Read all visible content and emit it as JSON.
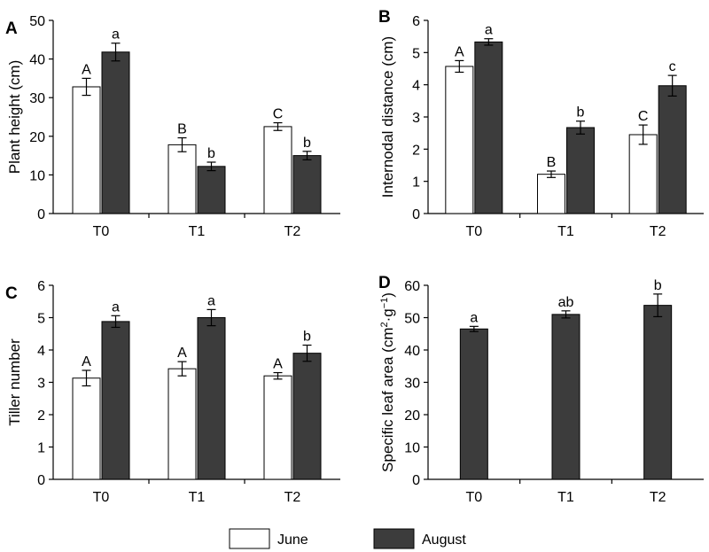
{
  "chart_data": [
    {
      "type": "bar",
      "panel": "A",
      "categories": [
        "T0",
        "T1",
        "T2"
      ],
      "ylabel": "Plant height (cm)",
      "ylim": [
        0,
        50
      ],
      "yticks": [
        0,
        10,
        20,
        30,
        40,
        50
      ],
      "series": [
        {
          "name": "June",
          "values": [
            32.8,
            17.8,
            22.5
          ],
          "errors": [
            2.2,
            1.8,
            1.0
          ],
          "labels": [
            "A",
            "B",
            "C"
          ]
        },
        {
          "name": "August",
          "values": [
            41.8,
            12.2,
            15.0
          ],
          "errors": [
            2.3,
            1.1,
            1.1
          ],
          "labels": [
            "a",
            "b",
            "b"
          ]
        }
      ]
    },
    {
      "type": "bar",
      "panel": "B",
      "categories": [
        "T0",
        "T1",
        "T2"
      ],
      "ylabel": "Internodal distance (cm)",
      "ylim": [
        0,
        6
      ],
      "yticks": [
        0,
        1,
        2,
        3,
        4,
        5,
        6
      ],
      "series": [
        {
          "name": "June",
          "values": [
            4.57,
            1.22,
            2.45
          ],
          "errors": [
            0.18,
            0.1,
            0.3
          ],
          "labels": [
            "A",
            "B",
            "C"
          ]
        },
        {
          "name": "August",
          "values": [
            5.33,
            2.67,
            3.97
          ],
          "errors": [
            0.1,
            0.2,
            0.32
          ],
          "labels": [
            "a",
            "b",
            "c"
          ]
        }
      ]
    },
    {
      "type": "bar",
      "panel": "C",
      "categories": [
        "T0",
        "T1",
        "T2"
      ],
      "ylabel": "Tiller number",
      "ylim": [
        0,
        6
      ],
      "yticks": [
        0,
        1,
        2,
        3,
        4,
        5,
        6
      ],
      "series": [
        {
          "name": "June",
          "values": [
            3.13,
            3.42,
            3.2
          ],
          "errors": [
            0.24,
            0.22,
            0.1
          ],
          "labels": [
            "A",
            "A",
            "A"
          ]
        },
        {
          "name": "August",
          "values": [
            4.88,
            5.0,
            3.9
          ],
          "errors": [
            0.18,
            0.25,
            0.25
          ],
          "labels": [
            "a",
            "a",
            "b"
          ]
        }
      ]
    },
    {
      "type": "bar",
      "panel": "D",
      "categories": [
        "T0",
        "T1",
        "T2"
      ],
      "ylabel_main": "Specific leaf area (cm",
      "ylabel_sup1": "2",
      "ylabel_mid": "·g",
      "ylabel_sup2": "−1",
      "ylabel_end": ")",
      "ylim": [
        0,
        60
      ],
      "yticks": [
        0,
        10,
        20,
        30,
        40,
        50,
        60
      ],
      "series": [
        {
          "name": "August",
          "values": [
            46.5,
            51.0,
            53.8
          ],
          "errors": [
            0.8,
            1.1,
            3.5
          ],
          "labels": [
            "a",
            "ab",
            "b"
          ]
        }
      ]
    }
  ],
  "legend": {
    "position": "bottom",
    "items": [
      {
        "label": "June",
        "color": "#ffffff"
      },
      {
        "label": "August",
        "color": "#3c3c3c"
      }
    ]
  },
  "colors": {
    "june": "#ffffff",
    "august": "#3c3c3c",
    "axis": "#000000"
  }
}
